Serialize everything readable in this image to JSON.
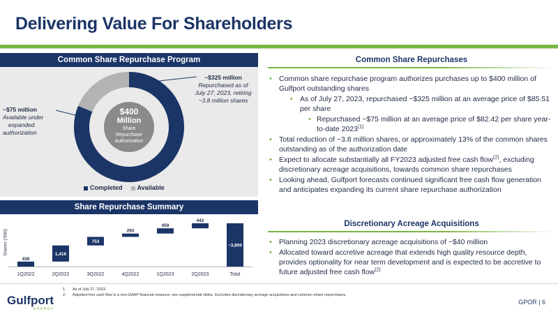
{
  "title": "Delivering Value For Shareholders",
  "left_top": {
    "header": "Common Share Repurchase Program",
    "center": {
      "amount": "$400",
      "unit": "Million",
      "sub1": "Share",
      "sub2": "Repurchase",
      "sub3": "Authorization"
    },
    "callout_right": {
      "head": "~$325 million",
      "l1": "Repurchased as of",
      "l2": "July 27, 2023, retiring",
      "l3": "~3.8 million shares"
    },
    "callout_left": {
      "head": "~$75 million",
      "l1": "Available under",
      "l2": "expanded",
      "l3": "authorization"
    },
    "legend": [
      "Completed",
      "Available"
    ],
    "colors": {
      "completed": "#1c3567",
      "available": "#b3b3b3"
    }
  },
  "left_bottom": {
    "header": "Share Repurchase Summary",
    "ylabel": "Shares ('000)"
  },
  "chart_data": {
    "type": "bar",
    "subtype": "waterfall",
    "categories": [
      "1Q2022",
      "2Q2022",
      "3Q2022",
      "4Q2022",
      "1Q2023",
      "2Q2023",
      "Total"
    ],
    "values": [
      438,
      1416,
      753,
      293,
      459,
      442,
      3800
    ],
    "labels": [
      "438",
      "1,416",
      "753",
      "293",
      "459",
      "442",
      "~3,800"
    ],
    "title": "Share Repurchase Summary",
    "xlabel": "",
    "ylabel": "Shares ('000)",
    "ylim": [
      0,
      3800
    ],
    "color": "#1c3567"
  },
  "right_top": {
    "header": "Common Share Repurchases",
    "bullets": [
      {
        "level": 1,
        "text": "Common share repurchase program authorizes purchases up to $400 million of Gulfport outstanding shares",
        "sup": ""
      },
      {
        "level": 2,
        "text": "As of July 27, 2023, repurchased ~$325 million at an average price of $85.51 per share",
        "sup": ""
      },
      {
        "level": 3,
        "text": "Repurchased ~$75 million at an average price of $82.42 per share year-to-date 2023",
        "sup": "(1)"
      },
      {
        "level": 1,
        "text": "Total reduction of ~3.8 million shares, or approximately 13% of the common shares outstanding as of the authorization date",
        "sup": ""
      },
      {
        "level": 1,
        "text": "Expect to allocate substantially all FY2023 adjusted free cash flow",
        "sup": "(2)",
        "tail": ", excluding discretionary acreage acquisitions, towards common share repurchases"
      },
      {
        "level": 1,
        "text": "Looking ahead, Gulfport forecasts continued significant free cash flow generation and anticipates expanding its current share repurchase authorization",
        "sup": ""
      }
    ]
  },
  "right_bottom": {
    "header": "Discretionary Acreage Acquisitions",
    "bullets": [
      {
        "level": 1,
        "text": "Planning 2023 discretionary acreage acquisitions of ~$40 million",
        "sup": ""
      },
      {
        "level": 1,
        "text": "Allocated toward accretive acreage that extends high quality resource depth, provides optionality for near term development and is expected to be accretive to future adjusted free cash flow",
        "sup": "(2)"
      }
    ]
  },
  "footnotes": [
    {
      "n": "1.",
      "text": "As of July 27, 2023."
    },
    {
      "n": "2.",
      "text": "Adjusted free cash flow is a non-GAAP financial measure; see supplemental slides. Excludes discretionary acreage acquisitions and common share repurchases."
    }
  ],
  "logo": {
    "name": "Gulfport",
    "sub": "ENERGY"
  },
  "page": "GPOR | 6"
}
